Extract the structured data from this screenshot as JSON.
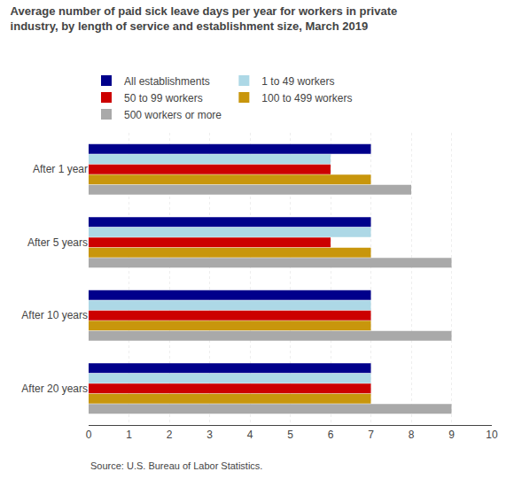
{
  "chart_data": {
    "type": "bar",
    "orientation": "horizontal",
    "title": "Average number of paid sick leave days per year for workers in private\nindustry, by length of service and establishment size, March 2019",
    "categories": [
      "After 1 year",
      "After 5 years",
      "After 10 years",
      "After 20 years"
    ],
    "series": [
      {
        "name": "All establishments",
        "color": "#00008B",
        "values": [
          7,
          7,
          7,
          7
        ]
      },
      {
        "name": "1 to 49 workers",
        "color": "#ADD8E6",
        "values": [
          6,
          7,
          7,
          7
        ]
      },
      {
        "name": "50 to 99 workers",
        "color": "#CC0000",
        "values": [
          6,
          6,
          7,
          7
        ]
      },
      {
        "name": "100 to 499 workers",
        "color": "#C8960C",
        "values": [
          7,
          7,
          7,
          7
        ]
      },
      {
        "name": "500 workers or more",
        "color": "#A9A9A9",
        "values": [
          8,
          9,
          9,
          9
        ]
      }
    ],
    "xlim": [
      0,
      10
    ],
    "xticks": [
      0,
      1,
      2,
      3,
      4,
      5,
      6,
      7,
      8,
      9,
      10
    ],
    "grid": true,
    "legend": "top",
    "annotations": [
      "Source: U.S. Bureau of Labor Statistics."
    ]
  }
}
